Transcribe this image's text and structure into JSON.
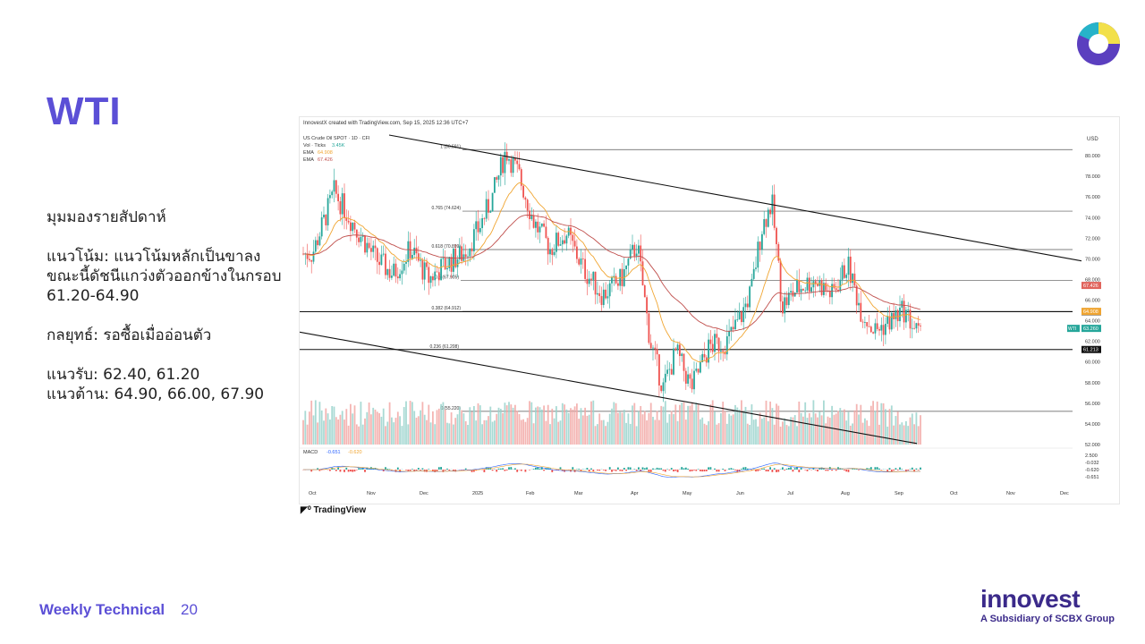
{
  "slide": {
    "title": "WTI",
    "commentary": {
      "view_heading": "มุมมองรายสัปดาห์",
      "trend": "แนวโน้ม: แนวโน้มหลักเป็นขาลง ขณะนี้ดัชนีแกว่งตัวออกข้างในกรอบ 61.20-64.90",
      "strategy": "กลยุทธ์: รอซื้อเมื่ออ่อนตัว",
      "support": "แนวรับ: 62.40, 61.20",
      "resistance": "แนวต้าน: 64.90, 66.00, 67.90"
    },
    "footer_label": "Weekly Technical",
    "page_number": "20",
    "brand": {
      "name": "innovest",
      "tagline": "A Subsidiary of SCBX Group"
    },
    "brand_colors": {
      "primary": "#5b4fd6",
      "dark": "#3b2a8a",
      "logo_yellow": "#f2e04a",
      "logo_teal": "#27b3c9"
    }
  },
  "chart_header": {
    "created_by": "InnovestX created with TradingView.com, Sep 15, 2025 12:36 UTC+7",
    "symbol_line": "US Crude Oil SPOT · 1D · CFI",
    "indicator_vol": "Vol · Ticks",
    "indicator_vol_value": "3.45K",
    "ema1_label": "EMA",
    "ema1_value": "64.908",
    "ema2_label": "EMA",
    "ema2_value": "67.426",
    "macd_label": "MACD",
    "macd_value_1": "-0.651",
    "macd_value_2": "-0.620",
    "currency": "USD",
    "tradingview": "TradingView"
  },
  "chart_data": {
    "type": "candlestick",
    "title": "US Crude Oil SPOT · 1D",
    "y_axis": {
      "min": 52,
      "max": 82,
      "unit": "USD",
      "ticks": [
        "80.000",
        "78.000",
        "76.000",
        "74.000",
        "72.000",
        "70.000",
        "68.000",
        "66.000",
        "64.000",
        "62.000",
        "60.000",
        "58.000",
        "56.000",
        "54.000",
        "52.000"
      ]
    },
    "x_axis_months": [
      "Oct",
      "Nov",
      "Dec",
      "2025",
      "Feb",
      "Mar",
      "Apr",
      "May",
      "Jun",
      "Jul",
      "Aug",
      "Sep",
      "Oct",
      "Nov",
      "Dec"
    ],
    "fibonacci_levels": [
      {
        "label": "1 (80.591)",
        "value": 80.591
      },
      {
        "label": "0.765 (74.624)",
        "value": 74.624
      },
      {
        "label": "0.618 (70.899)",
        "value": 70.899
      },
      {
        "label": "0.5 (67.905)",
        "value": 67.905
      },
      {
        "label": "0.382 (64.912)",
        "value": 64.912
      },
      {
        "label": "0.236 (61.208)",
        "value": 61.208
      },
      {
        "label": "0 (55.220)",
        "value": 55.22
      }
    ],
    "horizontal_lines": [
      {
        "label": "64.879",
        "value": 64.879,
        "color": "#111111"
      },
      {
        "label": "61.213",
        "value": 61.213,
        "color": "#111111"
      }
    ],
    "price_tags": [
      {
        "label": "67.426",
        "value": 67.426,
        "color": "#e0645c"
      },
      {
        "label": "64.908",
        "value": 64.908,
        "color": "#f0a531"
      },
      {
        "label": "63.260",
        "value": 63.26,
        "color": "#26a69a",
        "symbol": "WTI"
      }
    ],
    "current_price": 63.26,
    "macd_ticks": [
      "2.500",
      "-0.032",
      "-0.620",
      "-0.651"
    ],
    "ema_fast_color": "#f0a531",
    "ema_slow_color": "#c0504d",
    "up_color": "#26a69a",
    "down_color": "#ef5350",
    "trendline_upper": {
      "from": [
        "Jan 15, 2025",
        80.6
      ],
      "to": [
        "Dec 20, 2025",
        69.8
      ]
    },
    "trendline_lower": {
      "from": [
        "Sep 30, 2024",
        62.9
      ],
      "to": [
        "Sep 12, 2025",
        52.1
      ]
    },
    "price_path": [
      [
        "Oct",
        70.5
      ],
      [
        "Oct",
        76.5
      ],
      [
        "Oct",
        73.0
      ],
      [
        "Nov",
        70.0
      ],
      [
        "Nov",
        68.5
      ],
      [
        "Nov",
        71.0
      ],
      [
        "Dec",
        68.0
      ],
      [
        "Dec",
        69.5
      ],
      [
        "Dec",
        70.5
      ],
      [
        "Jan",
        73.0
      ],
      [
        "Jan",
        76.0
      ],
      [
        "Jan",
        80.5
      ],
      [
        "Jan",
        78.0
      ],
      [
        "Feb",
        73.5
      ],
      [
        "Feb",
        71.0
      ],
      [
        "Feb",
        72.5
      ],
      [
        "Mar",
        69.0
      ],
      [
        "Mar",
        66.5
      ],
      [
        "Mar",
        68.0
      ],
      [
        "Apr",
        71.5
      ],
      [
        "Apr",
        62.0
      ],
      [
        "Apr",
        57.5
      ],
      [
        "Apr",
        61.0
      ],
      [
        "May",
        57.5
      ],
      [
        "May",
        61.5
      ],
      [
        "May",
        62.0
      ],
      [
        "Jun",
        64.5
      ],
      [
        "Jun",
        67.0
      ],
      [
        "Jun",
        73.0
      ],
      [
        "Jun",
        75.5
      ],
      [
        "Jun",
        65.5
      ],
      [
        "Jul",
        67.0
      ],
      [
        "Jul",
        68.0
      ],
      [
        "Jul",
        66.5
      ],
      [
        "Aug",
        69.5
      ],
      [
        "Aug",
        65.0
      ],
      [
        "Aug",
        63.0
      ],
      [
        "Aug",
        63.8
      ],
      [
        "Sep",
        65.0
      ],
      [
        "Sep",
        62.0
      ],
      [
        "Sep",
        63.3
      ]
    ]
  }
}
